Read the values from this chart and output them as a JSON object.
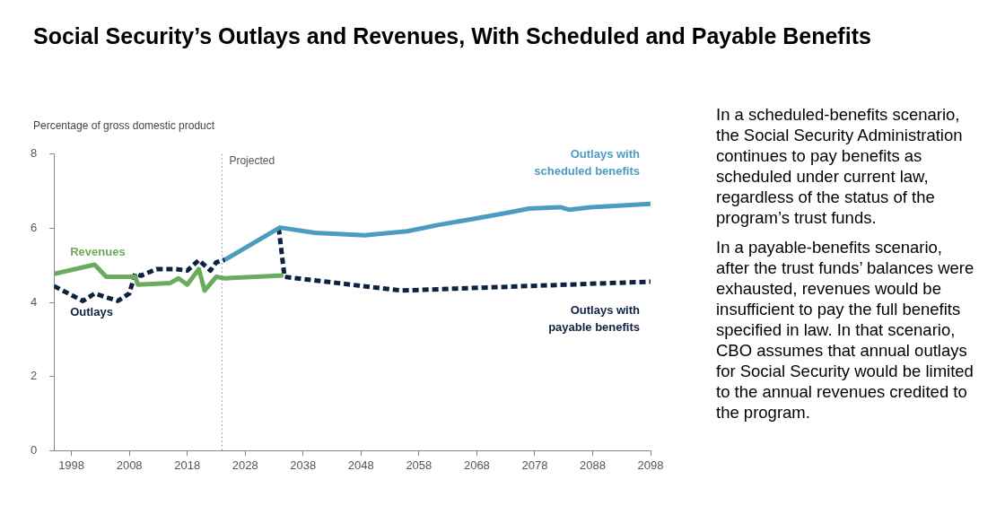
{
  "chart_data": {
    "type": "line",
    "title": "Social Security’s Outlays and Revenues, With Scheduled and Payable Benefits",
    "ylabel": "Percentage of gross domestic product",
    "xlim": [
      1995,
      2098
    ],
    "xticks": [
      1998,
      2008,
      2018,
      2028,
      2038,
      2048,
      2058,
      2068,
      2078,
      2088,
      2098
    ],
    "ylim": [
      0,
      8
    ],
    "yticks": [
      0,
      2,
      4,
      6,
      8
    ],
    "grid": false,
    "legend": false,
    "marker": "none",
    "ref_lines": [
      {
        "axis": "x",
        "value": 2024,
        "label": "Projected",
        "color": "#888888",
        "line_style": "dotted"
      }
    ],
    "series": [
      {
        "name": "Revenues",
        "color": "#6aab5e",
        "line_style": "solid",
        "x": [
          1995,
          2002,
          2004,
          2009,
          2009.5,
          2012,
          2015,
          2016.5,
          2018,
          2020,
          2021,
          2023,
          2024.5,
          2034.6
        ],
        "values": [
          4.77,
          5.02,
          4.69,
          4.69,
          4.48,
          4.5,
          4.52,
          4.65,
          4.48,
          4.9,
          4.32,
          4.69,
          4.65,
          4.73
        ]
      },
      {
        "name": "Outlays",
        "color": "#0d2240",
        "line_style": "dashed",
        "x": [
          1995,
          2000,
          2002,
          2006,
          2008,
          2009,
          2010,
          2012.7,
          2016,
          2018,
          2020,
          2022,
          2023,
          2024.5
        ],
        "values": [
          4.44,
          4.04,
          4.24,
          4.04,
          4.24,
          4.78,
          4.72,
          4.9,
          4.9,
          4.86,
          5.14,
          4.86,
          5.08,
          5.15
        ]
      },
      {
        "name": "Outlays with scheduled benefits",
        "color": "#4b9cc0",
        "line_style": "solid",
        "x": [
          2024.5,
          2034,
          2040,
          2048.6,
          2056,
          2061,
          2067.6,
          2073,
          2077,
          2082.4,
          2084,
          2087.7,
          2098
        ],
        "values": [
          5.15,
          6.02,
          5.88,
          5.81,
          5.92,
          6.08,
          6.26,
          6.41,
          6.53,
          6.57,
          6.5,
          6.57,
          6.66
        ]
      },
      {
        "name": "Outlays with payable benefits",
        "color": "#0d2240",
        "line_style": "dashed",
        "x": [
          2033.8,
          2034.8,
          2055,
          2098
        ],
        "values": [
          6.0,
          4.69,
          4.32,
          4.56
        ]
      }
    ],
    "annotations": [
      "In a scheduled-benefits scenario, the Social Security Administration continues to pay benefits as scheduled under current law, regardless of the status of the program’s trust funds.",
      "In a payable-benefits scenario, after the trust funds’ balances were exhausted, revenues would be insufficient to pay the full benefits specified in law. In that scenario, CBO assumes that annual outlays for Social Security would be limited to the annual revenues credited to the program."
    ]
  }
}
